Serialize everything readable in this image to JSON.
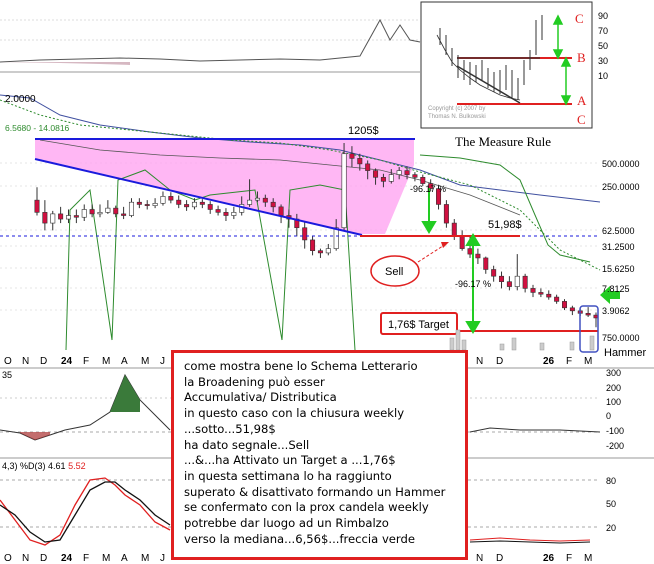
{
  "chart_data": {
    "type": "candlestick",
    "price_scale": "log",
    "right_axis_price_labels": [
      "500.0000",
      "250.0000",
      "62.5000",
      "31.2500",
      "15.6250",
      "7.8125",
      "3.9062",
      "750.0000"
    ],
    "left_labels": {
      "top_value": "2.0000",
      "ma_values": "6.5680 - 14.0816"
    },
    "x_labels": [
      "O",
      "N",
      "D",
      "24",
      "F",
      "M",
      "A",
      "M",
      "J",
      "J",
      "A",
      "S",
      "O",
      "N",
      "D",
      "26",
      "F",
      "M"
    ],
    "year_labels": [
      "24",
      "26"
    ],
    "rsi_axis": [
      "300",
      "200",
      "100",
      "0",
      "-100",
      "-200"
    ],
    "rsi_label": "35",
    "stoch_axis": [
      "80",
      "50",
      "20"
    ],
    "stoch_label": {
      "prefix": "4,3) %D(3)",
      "d_value": "4.61",
      "k_value": "5.52"
    },
    "top_axis": [
      "90",
      "70",
      "50",
      "30",
      "10"
    ],
    "annotations": {
      "level_1205": "1205$",
      "level_5198": "51,98$",
      "drop_pct_1": "-96.17 %",
      "drop_pct_2": "-96.17 %",
      "sell": "Sell",
      "target": "1,76$ Target",
      "hammer": "Hammer"
    },
    "candles": [
      [
        150,
        100,
        230,
        90
      ],
      [
        100,
        70,
        150,
        55
      ],
      [
        70,
        95,
        105,
        55
      ],
      [
        95,
        80,
        120,
        70
      ],
      [
        80,
        90,
        110,
        70
      ],
      [
        90,
        85,
        110,
        70
      ],
      [
        85,
        110,
        130,
        75
      ],
      [
        110,
        95,
        130,
        85
      ],
      [
        95,
        100,
        130,
        85
      ],
      [
        100,
        115,
        150,
        95
      ],
      [
        115,
        95,
        125,
        85
      ],
      [
        95,
        90,
        120,
        80
      ],
      [
        90,
        140,
        160,
        85
      ],
      [
        140,
        130,
        160,
        115
      ],
      [
        130,
        125,
        150,
        110
      ],
      [
        125,
        135,
        160,
        115
      ],
      [
        135,
        170,
        200,
        125
      ],
      [
        170,
        150,
        195,
        135
      ],
      [
        150,
        130,
        175,
        115
      ],
      [
        130,
        120,
        150,
        105
      ],
      [
        120,
        140,
        160,
        110
      ],
      [
        140,
        130,
        155,
        115
      ],
      [
        130,
        110,
        145,
        95
      ],
      [
        110,
        100,
        125,
        90
      ],
      [
        100,
        90,
        115,
        75
      ],
      [
        90,
        100,
        120,
        80
      ],
      [
        100,
        130,
        170,
        90
      ],
      [
        130,
        150,
        300,
        120
      ],
      [
        150,
        160,
        200,
        140
      ],
      [
        160,
        140,
        180,
        120
      ],
      [
        140,
        120,
        160,
        100
      ],
      [
        120,
        90,
        130,
        70
      ],
      [
        90,
        80,
        110,
        60
      ],
      [
        80,
        60,
        95,
        45
      ],
      [
        60,
        40,
        75,
        30
      ],
      [
        40,
        28,
        45,
        24
      ],
      [
        28,
        26,
        30,
        22
      ],
      [
        26,
        30,
        35,
        24
      ],
      [
        30,
        60,
        80,
        28
      ],
      [
        60,
        700,
        1000,
        55
      ],
      [
        700,
        600,
        900,
        450
      ],
      [
        600,
        500,
        700,
        400
      ],
      [
        500,
        400,
        560,
        300
      ],
      [
        400,
        320,
        430,
        250
      ],
      [
        320,
        280,
        360,
        230
      ],
      [
        280,
        350,
        420,
        260
      ],
      [
        350,
        400,
        450,
        300
      ],
      [
        400,
        350,
        460,
        300
      ],
      [
        350,
        320,
        380,
        280
      ],
      [
        320,
        260,
        350,
        240
      ],
      [
        260,
        220,
        300,
        200
      ],
      [
        220,
        130,
        250,
        110
      ],
      [
        130,
        70,
        150,
        60
      ],
      [
        70,
        45,
        80,
        40
      ],
      [
        45,
        30,
        55,
        28
      ],
      [
        30,
        25,
        45,
        22
      ],
      [
        25,
        22,
        30,
        18
      ],
      [
        22,
        15,
        23,
        13
      ],
      [
        15,
        12,
        17,
        10
      ],
      [
        12,
        10,
        14,
        8
      ],
      [
        10,
        8.5,
        12,
        7.5
      ],
      [
        8.5,
        12,
        25,
        7.5
      ],
      [
        12,
        8,
        13,
        7
      ],
      [
        8,
        7,
        9,
        6
      ],
      [
        7,
        6.6,
        8,
        6
      ],
      [
        6.6,
        6,
        7.5,
        5.5
      ],
      [
        6,
        5.2,
        6.5,
        4.8
      ],
      [
        5.2,
        4.2,
        5.6,
        3.9
      ],
      [
        4.2,
        3.8,
        4.5,
        3.3
      ],
      [
        3.8,
        3.5,
        4.1,
        3.2
      ],
      [
        3.5,
        3.3,
        4.3,
        3.1
      ],
      [
        3.3,
        3.0,
        3.6,
        2.2
      ]
    ]
  },
  "inset": {
    "title": "The Measure Rule",
    "copyright": "Copyright (c) 2007 by\nThomas N. Bulkowski",
    "letters": [
      "C",
      "B",
      "A",
      "C"
    ]
  },
  "note_lines": [
    "come mostra bene lo Schema Letterario",
    "la Broadening può esser",
    " Accumulativa/ Distributica",
    "in questo caso con la chiusura weekly",
    "...sotto...51,98$",
    "ha dato segnale...Sell",
    "...&...ha Attivato un Target a ...1,76$",
    "in questa settimana lo ha raggiunto",
    "superato & disattivato formando un Hammer",
    "se confermato con la prox candela weekly",
    "potrebbe dar luogo ad un Rimbalzo",
    "verso la mediana...6,56$...freccia verde"
  ],
  "colors": {
    "up": "#ffffff",
    "down": "#d01040",
    "triangle": "#ff9ff0",
    "trendline": "#1a1adc",
    "red_line": "#e02020",
    "green_arrow": "#22cc22",
    "band": "#2e8b2e",
    "ma": "#4050a0"
  }
}
